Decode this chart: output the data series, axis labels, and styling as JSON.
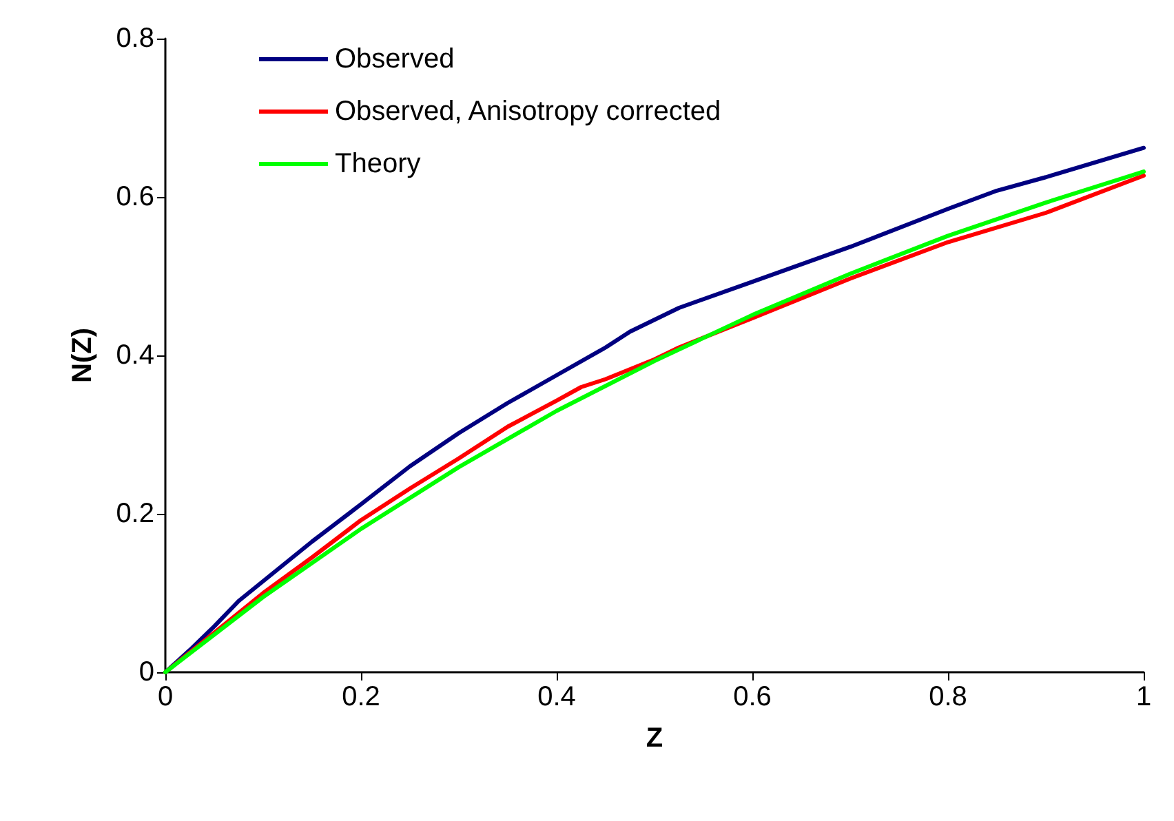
{
  "chart_data": {
    "type": "line",
    "xlabel": "Z",
    "ylabel": "N(Z)",
    "xlim": [
      0,
      1
    ],
    "xticks": [
      0,
      0.2,
      0.4,
      0.6,
      0.8,
      1
    ],
    "ylim": [
      0,
      0.8
    ],
    "yticks": [
      0,
      0.2,
      0.4,
      0.6,
      0.8
    ],
    "grid": false,
    "legend": "top left",
    "marker": "none",
    "line_style": "solid",
    "series": [
      {
        "name": "Observed",
        "color": "#000080",
        "x": [
          0,
          0.025,
          0.05,
          0.075,
          0.1,
          0.15,
          0.2,
          0.25,
          0.3,
          0.35,
          0.4,
          0.45,
          0.475,
          0.525,
          0.6,
          0.7,
          0.8,
          0.85,
          0.9,
          1
        ],
        "values": [
          0,
          0.028,
          0.058,
          0.09,
          0.115,
          0.165,
          0.212,
          0.26,
          0.302,
          0.34,
          0.375,
          0.41,
          0.43,
          0.46,
          0.493,
          0.537,
          0.585,
          0.608,
          0.625,
          0.662
        ]
      },
      {
        "name": "Observed, Anisotropy corrected",
        "color": "#ff0000",
        "x": [
          0,
          0.05,
          0.1,
          0.15,
          0.2,
          0.25,
          0.3,
          0.35,
          0.4,
          0.425,
          0.45,
          0.5,
          0.525,
          0.6,
          0.7,
          0.8,
          0.9,
          1
        ],
        "values": [
          0,
          0.05,
          0.1,
          0.145,
          0.192,
          0.232,
          0.27,
          0.31,
          0.343,
          0.36,
          0.37,
          0.395,
          0.41,
          0.447,
          0.497,
          0.543,
          0.58,
          0.627
        ]
      },
      {
        "name": "Theory",
        "color": "#00ff00",
        "x": [
          0,
          0.1,
          0.2,
          0.3,
          0.4,
          0.5,
          0.6,
          0.7,
          0.8,
          0.9,
          1
        ],
        "values": [
          0,
          0.095,
          0.181,
          0.259,
          0.33,
          0.393,
          0.451,
          0.503,
          0.551,
          0.593,
          0.632
        ]
      }
    ]
  }
}
